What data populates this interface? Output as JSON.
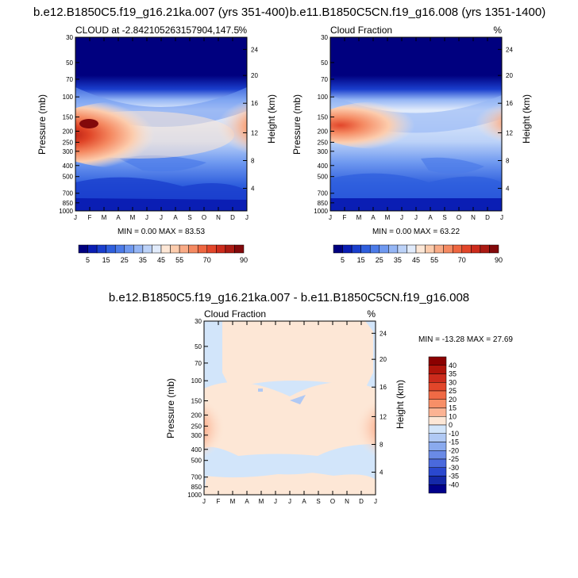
{
  "chart_data": [
    {
      "type": "heatmap",
      "title": "b.e12.B1850C5.f19_g16.21ka.007 (yrs 351-400)",
      "left_label": "CLOUD at -2.842105263157904,147.5",
      "right_label": "%",
      "xlabel": "",
      "ylabel": "Pressure (mb)",
      "ylabel_right": "Height (km)",
      "x_ticks": [
        "J",
        "F",
        "M",
        "A",
        "M",
        "J",
        "J",
        "A",
        "S",
        "O",
        "N",
        "D",
        "J"
      ],
      "y_ticks": [
        "30",
        "50",
        "70",
        "100",
        "150",
        "200",
        "250",
        "300",
        "400",
        "500",
        "700",
        "850",
        "1000"
      ],
      "y_ticks_right": [
        "24",
        "20",
        "16",
        "12",
        "8",
        "4"
      ],
      "ylim": [
        1000,
        30
      ],
      "minmax_text": "MIN =   0.00 MAX =  83.53",
      "min": 0.0,
      "max": 83.53,
      "colorbar_levels": [
        5,
        10,
        15,
        20,
        25,
        30,
        35,
        40,
        45,
        50,
        55,
        60,
        65,
        70,
        75,
        80,
        85,
        90
      ],
      "colorbar_labels": [
        "5",
        "15",
        "25",
        "35",
        "45",
        "55",
        "70",
        "90"
      ],
      "colorbar_colors": [
        "#00007f",
        "#0a1eb4",
        "#1a3fcd",
        "#2f5fdd",
        "#4c7be8",
        "#6f99f0",
        "#95b6f5",
        "#bcd2f8",
        "#e1ebfb",
        "#fde7d6",
        "#fcccad",
        "#f9ab86",
        "#f58a62",
        "#ee6640",
        "#e2462a",
        "#cc2b1c",
        "#ab1a13",
        "#82090b"
      ]
    },
    {
      "type": "heatmap",
      "title": "b.e11.B1850C5CN.f19_g16.008 (yrs 1351-1400)",
      "left_label": "Cloud Fraction",
      "right_label": "%",
      "ylabel": "Pressure (mb)",
      "ylabel_right": "Height (km)",
      "x_ticks": [
        "J",
        "F",
        "M",
        "A",
        "M",
        "J",
        "J",
        "A",
        "S",
        "O",
        "N",
        "D",
        "J"
      ],
      "y_ticks": [
        "30",
        "50",
        "70",
        "100",
        "150",
        "200",
        "250",
        "300",
        "400",
        "500",
        "700",
        "850",
        "1000"
      ],
      "y_ticks_right": [
        "24",
        "20",
        "16",
        "12",
        "8",
        "4"
      ],
      "ylim": [
        1000,
        30
      ],
      "minmax_text": "MIN =   0.00 MAX =  63.22",
      "min": 0.0,
      "max": 63.22,
      "colorbar_levels": [
        5,
        10,
        15,
        20,
        25,
        30,
        35,
        40,
        45,
        50,
        55,
        60,
        65,
        70,
        75,
        80,
        85,
        90
      ],
      "colorbar_labels": [
        "5",
        "15",
        "25",
        "35",
        "45",
        "55",
        "70",
        "90"
      ],
      "colorbar_colors": [
        "#00007f",
        "#0a1eb4",
        "#1a3fcd",
        "#2f5fdd",
        "#4c7be8",
        "#6f99f0",
        "#95b6f5",
        "#bcd2f8",
        "#e1ebfb",
        "#fde7d6",
        "#fcccad",
        "#f9ab86",
        "#f58a62",
        "#ee6640",
        "#e2462a",
        "#cc2b1c",
        "#ab1a13",
        "#82090b"
      ]
    },
    {
      "type": "heatmap",
      "title": "b.e12.B1850C5.f19_g16.21ka.007 - b.e11.B1850C5CN.f19_g16.008",
      "left_label": "Cloud Fraction",
      "right_label": "%",
      "ylabel": "Pressure (mb)",
      "ylabel_right": "Height (km)",
      "x_ticks": [
        "J",
        "F",
        "M",
        "A",
        "M",
        "J",
        "J",
        "A",
        "S",
        "O",
        "N",
        "D",
        "J"
      ],
      "y_ticks": [
        "30",
        "50",
        "70",
        "100",
        "150",
        "200",
        "250",
        "300",
        "400",
        "500",
        "700",
        "850",
        "1000"
      ],
      "y_ticks_right": [
        "24",
        "20",
        "16",
        "12",
        "8",
        "4"
      ],
      "ylim": [
        1000,
        30
      ],
      "minmax_text": "MIN = -13.28 MAX =  27.69",
      "min": -13.28,
      "max": 27.69,
      "colorbar_levels": [
        40,
        35,
        30,
        25,
        20,
        15,
        10,
        0,
        -10,
        -15,
        -20,
        -25,
        -30,
        -35,
        -40
      ],
      "colorbar_labels": [
        "40",
        "35",
        "30",
        "25",
        "20",
        "15",
        "10",
        "0",
        "-10",
        "-15",
        "-20",
        "-25",
        "-30",
        "-35",
        "-40"
      ],
      "colorbar_colors": [
        "#8b0000",
        "#b0140a",
        "#cc2b1c",
        "#e2462a",
        "#f06a45",
        "#f78f67",
        "#fcb393",
        "#fde7d6",
        "#d2e5fa",
        "#b0c9f4",
        "#8aaaee",
        "#6a8ae6",
        "#4a69dd",
        "#2a48cf",
        "#1428a8",
        "#00008a"
      ]
    }
  ]
}
